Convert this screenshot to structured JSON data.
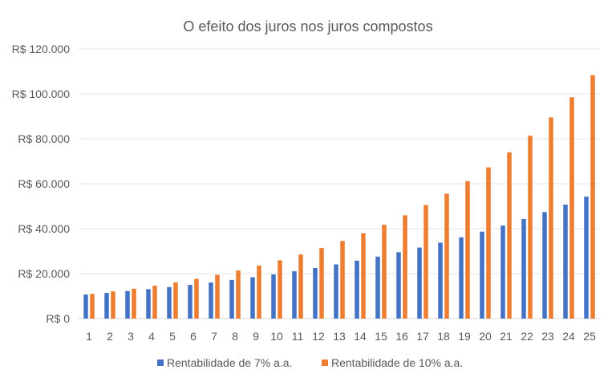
{
  "chart_data": {
    "type": "bar",
    "title": "O efeito dos juros nos juros compostos",
    "xlabel": "",
    "ylabel": "",
    "ylim": [
      0,
      120000
    ],
    "y_ticks": [
      0,
      20000,
      40000,
      60000,
      80000,
      100000,
      120000
    ],
    "y_tick_labels": [
      "R$ 0",
      "R$ 20.000",
      "R$ 40.000",
      "R$ 60.000",
      "R$ 80.000",
      "R$ 100.000",
      "R$ 120.000"
    ],
    "grid": true,
    "legend_position": "bottom",
    "categories": [
      "1",
      "2",
      "3",
      "4",
      "5",
      "6",
      "7",
      "8",
      "9",
      "10",
      "11",
      "12",
      "13",
      "14",
      "15",
      "16",
      "17",
      "18",
      "19",
      "20",
      "21",
      "22",
      "23",
      "24",
      "25"
    ],
    "series": [
      {
        "name": "Rentabilidade de 7% a.a.",
        "color": "#4472C4",
        "values": [
          10700,
          11449,
          12250,
          13108,
          14026,
          15007,
          16058,
          17182,
          18385,
          19672,
          21049,
          22522,
          24098,
          25785,
          27590,
          29522,
          31588,
          33799,
          36165,
          38697,
          41406,
          44304,
          47405,
          50724,
          54274
        ]
      },
      {
        "name": "Rentabilidade de 10% a.a.",
        "color": "#ED7D31",
        "values": [
          11000,
          12100,
          13310,
          14641,
          16105,
          17716,
          19487,
          21436,
          23579,
          25937,
          28531,
          31384,
          34523,
          37975,
          41772,
          45950,
          50545,
          55599,
          61159,
          67275,
          74003,
          81403,
          89543,
          98497,
          108347
        ]
      }
    ]
  }
}
